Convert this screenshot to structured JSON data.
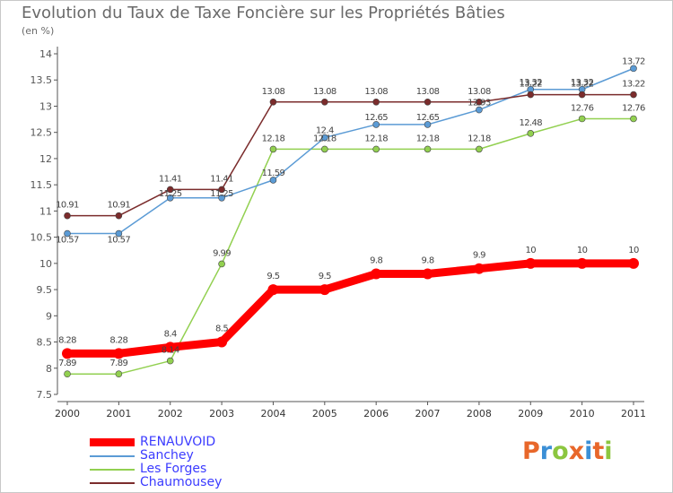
{
  "page": {
    "title": "Evolution du Taux de Taxe Foncière sur les Propriétés Bâties",
    "subtitle": "(en %)"
  },
  "logo": {
    "text": "Proxiti",
    "colors": [
      "#e8672a",
      "#3b8fd6",
      "#8cc63f",
      "#e8672a",
      "#3b8fd6",
      "#e8672a",
      "#8cc63f"
    ]
  },
  "chart_data": {
    "type": "line",
    "title": "Evolution du Taux de Taxe Foncière sur les Propriétés Bâties",
    "ylabel": "(en %)",
    "xlabel": "",
    "categories": [
      "2000",
      "2001",
      "2002",
      "2003",
      "2004",
      "2005",
      "2006",
      "2007",
      "2008",
      "2009",
      "2010",
      "2011"
    ],
    "yticks": [
      "7.5",
      "8",
      "8.5",
      "9",
      "9.5",
      "10",
      "10.5",
      "11",
      "11.5",
      "12",
      "12.5",
      "13",
      "13.5",
      "14"
    ],
    "ylim": [
      7.5,
      14
    ],
    "grid": false,
    "legend_position": "bottom-left",
    "series": [
      {
        "name": "RENAUVOID",
        "color": "#ff0000",
        "values": [
          8.28,
          8.28,
          8.4,
          8.5,
          9.5,
          9.5,
          9.8,
          9.8,
          9.9,
          10,
          10,
          10
        ],
        "labels": [
          "8.28",
          "8.28",
          "8.4",
          "8.5",
          "9.5",
          "9.5",
          "9.8",
          "9.8",
          "9.9",
          "10",
          "10",
          "10"
        ]
      },
      {
        "name": "Sanchey",
        "color": "#5b9bd5",
        "values": [
          10.57,
          10.57,
          11.25,
          11.25,
          11.59,
          12.4,
          12.65,
          12.65,
          12.93,
          13.32,
          13.32,
          13.72
        ],
        "labels": [
          "10.57",
          "10.57",
          "11.25",
          "11.25",
          "11.59",
          "12.4",
          "12.65",
          "12.65",
          "12.93",
          "13.32",
          "13.32",
          "13.72"
        ]
      },
      {
        "name": "Les Forges",
        "color": "#92d050",
        "values": [
          7.89,
          7.89,
          8.14,
          9.99,
          12.18,
          12.18,
          12.18,
          12.18,
          12.18,
          12.48,
          12.76,
          12.76
        ],
        "labels": [
          "7.89",
          "7.89",
          "8.14",
          "9.99",
          "12.18",
          "12.18",
          "12.18",
          "12.18",
          "12.18",
          "12.48",
          "12.76",
          "12.76"
        ]
      },
      {
        "name": "Chaumousey",
        "color": "#7b2c2c",
        "values": [
          10.91,
          10.91,
          11.41,
          11.41,
          13.08,
          13.08,
          13.08,
          13.08,
          13.08,
          13.22,
          13.22,
          13.22
        ],
        "labels": [
          "10.91",
          "10.91",
          "11.41",
          "11.41",
          "13.08",
          "13.08",
          "13.08",
          "13.08",
          "13.08",
          "13.22",
          "13.22",
          "13.22"
        ]
      }
    ]
  }
}
